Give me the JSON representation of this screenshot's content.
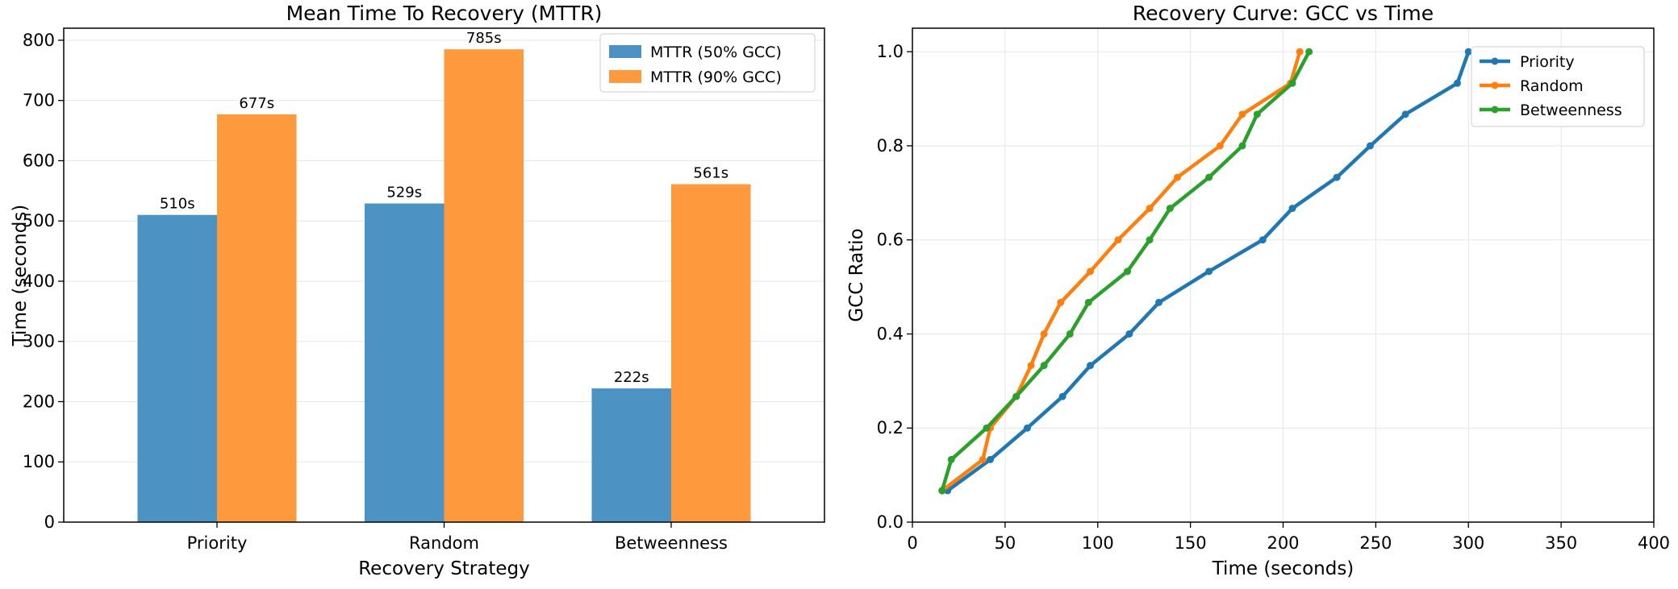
{
  "chart_data": [
    {
      "type": "bar",
      "title": "Mean Time To Recovery (MTTR)",
      "xlabel": "Recovery Strategy",
      "ylabel": "Time (seconds)",
      "categories": [
        "Priority",
        "Random",
        "Betweenness"
      ],
      "ylim": [
        0,
        820
      ],
      "yticks": [
        0,
        100,
        200,
        300,
        400,
        500,
        600,
        700,
        800
      ],
      "grid": "horizontal",
      "legend_position": "top-right",
      "series": [
        {
          "name": "MTTR (50% GCC)",
          "color": "#4c93c4",
          "values": [
            510,
            529,
            222
          ],
          "labels": [
            "510s",
            "529s",
            "222s"
          ]
        },
        {
          "name": "MTTR (90% GCC)",
          "color": "#ff993e",
          "values": [
            677,
            785,
            561
          ],
          "labels": [
            "677s",
            "785s",
            "561s"
          ]
        }
      ]
    },
    {
      "type": "line",
      "title": "Recovery Curve: GCC vs Time",
      "xlabel": "Time (seconds)",
      "ylabel": "GCC Ratio",
      "xlim": [
        0,
        400
      ],
      "ylim": [
        0,
        1.05
      ],
      "xticks": [
        0,
        50,
        100,
        150,
        200,
        250,
        300,
        350,
        400
      ],
      "yticks": [
        0.0,
        0.2,
        0.4,
        0.6,
        0.8,
        1.0
      ],
      "tick_format": {
        "x": 0,
        "y": 1
      },
      "grid": true,
      "legend_position": "top-right",
      "series": [
        {
          "name": "Priority",
          "color": "#1f77b4",
          "x": [
            16,
            19,
            42,
            62,
            81,
            96,
            117,
            133,
            160,
            189,
            205,
            229,
            247,
            266,
            294,
            300
          ],
          "y": [
            0.067,
            0.067,
            0.133,
            0.2,
            0.267,
            0.333,
            0.4,
            0.467,
            0.533,
            0.6,
            0.667,
            0.733,
            0.8,
            0.867,
            0.933,
            1.0
          ]
        },
        {
          "name": "Random",
          "color": "#ff7f0e",
          "x": [
            16,
            38,
            42,
            56,
            64,
            71,
            80,
            96,
            111,
            128,
            143,
            166,
            178,
            204,
            209
          ],
          "y": [
            0.067,
            0.133,
            0.2,
            0.267,
            0.333,
            0.4,
            0.467,
            0.533,
            0.6,
            0.667,
            0.733,
            0.8,
            0.867,
            0.933,
            1.0
          ]
        },
        {
          "name": "Betweenness",
          "color": "#2ca02c",
          "x": [
            16,
            21,
            40,
            56,
            71,
            85,
            95,
            116,
            128,
            139,
            160,
            178,
            186,
            205,
            214
          ],
          "y": [
            0.067,
            0.133,
            0.2,
            0.267,
            0.333,
            0.4,
            0.467,
            0.533,
            0.6,
            0.667,
            0.733,
            0.8,
            0.867,
            0.933,
            1.0
          ]
        }
      ]
    }
  ]
}
